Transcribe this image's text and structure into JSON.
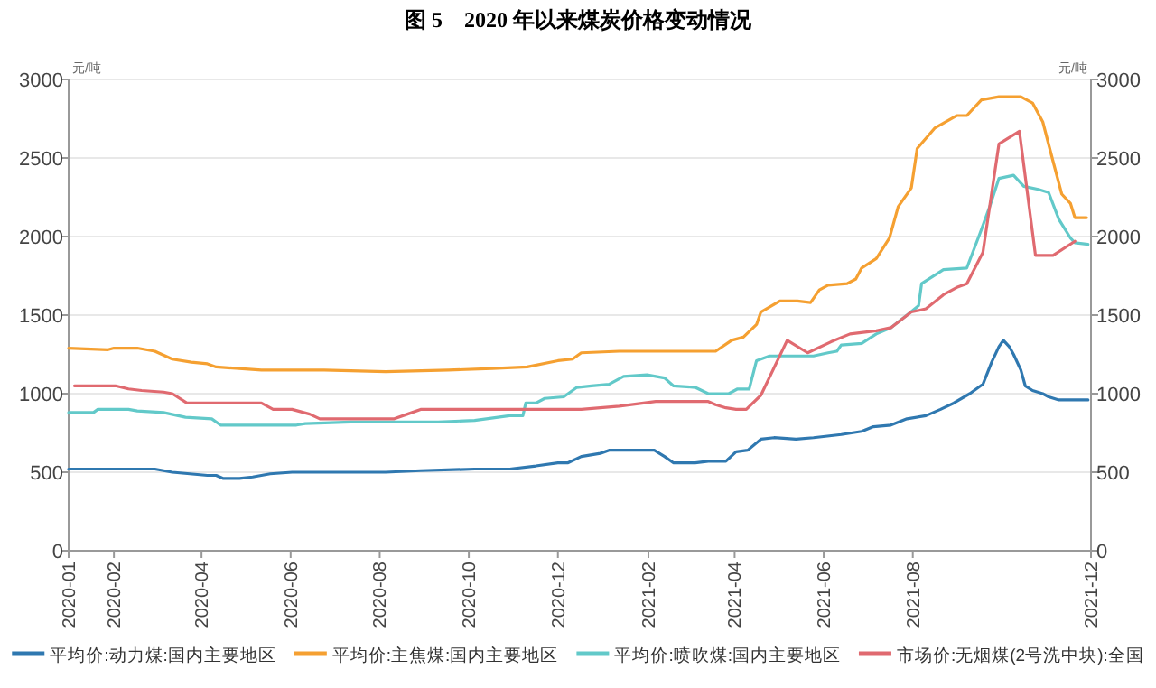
{
  "chart_data": {
    "type": "line",
    "title": "图 5　2020 年以来煤炭价格变动情况",
    "ylabel": "元/吨",
    "y2label": "元/吨",
    "xlim": [
      "2020-01-01",
      "2021-12-01"
    ],
    "ylim": [
      0,
      3000
    ],
    "y2lim": [
      0,
      3000
    ],
    "xticks": [
      {
        "value": "2020-01-01",
        "label": "2020-01"
      },
      {
        "value": "2020-02-01",
        "label": "2020-02"
      },
      {
        "value": "2020-04-01",
        "label": "2020-04"
      },
      {
        "value": "2020-06-01",
        "label": "2020-06"
      },
      {
        "value": "2020-08-01",
        "label": "2020-08"
      },
      {
        "value": "2020-10-01",
        "label": "2020-10"
      },
      {
        "value": "2020-12-01",
        "label": "2020-12"
      },
      {
        "value": "2021-02-01",
        "label": "2021-02"
      },
      {
        "value": "2021-04-01",
        "label": "2021-04"
      },
      {
        "value": "2021-06-01",
        "label": "2021-06"
      },
      {
        "value": "2021-08-01",
        "label": "2021-08"
      },
      {
        "value": "2021-12-01",
        "label": "2021-12"
      }
    ],
    "yticks": [
      0,
      500,
      1000,
      1500,
      2000,
      2500,
      3000
    ],
    "y2ticks": [
      0,
      500,
      1000,
      1500,
      2000,
      2500,
      3000
    ],
    "grid": "y",
    "legend": "bottom",
    "marker": "none",
    "line_style": "solid",
    "series": [
      {
        "name": "平均价:动力煤:国内主要地区",
        "color": "#2f78b0",
        "x": [
          "2020-01-01",
          "2020-01-18",
          "2020-02-05",
          "2020-02-29",
          "2020-03-12",
          "2020-04-05",
          "2020-04-11",
          "2020-04-16",
          "2020-04-27",
          "2020-05-06",
          "2020-05-18",
          "2020-06-02",
          "2020-07-06",
          "2020-08-05",
          "2020-08-29",
          "2020-10-05",
          "2020-10-29",
          "2020-11-16",
          "2020-12-01",
          "2020-12-08",
          "2020-12-17",
          "2020-12-30",
          "2021-01-05",
          "2021-02-05",
          "2021-02-12",
          "2021-02-18",
          "2021-03-05",
          "2021-03-14",
          "2021-03-26",
          "2021-04-02",
          "2021-04-10",
          "2021-04-19",
          "2021-04-28",
          "2021-05-13",
          "2021-05-25",
          "2021-06-13",
          "2021-06-27",
          "2021-07-05",
          "2021-07-17",
          "2021-07-28",
          "2021-08-10",
          "2021-08-20",
          "2021-08-29",
          "2021-09-09",
          "2021-09-18",
          "2021-09-24",
          "2021-09-29",
          "2021-10-02",
          "2021-10-06",
          "2021-10-09",
          "2021-10-14",
          "2021-10-17",
          "2021-10-22",
          "2021-10-29",
          "2021-11-02",
          "2021-11-09",
          "2021-11-29"
        ],
        "values": [
          520,
          520,
          520,
          520,
          500,
          480,
          480,
          460,
          460,
          470,
          490,
          500,
          500,
          500,
          510,
          520,
          520,
          540,
          560,
          560,
          600,
          620,
          640,
          640,
          600,
          560,
          560,
          570,
          570,
          630,
          640,
          710,
          720,
          710,
          720,
          740,
          760,
          790,
          800,
          840,
          860,
          900,
          940,
          1000,
          1060,
          1200,
          1300,
          1340,
          1300,
          1250,
          1150,
          1050,
          1020,
          1000,
          980,
          960,
          960
        ]
      },
      {
        "name": "平均价:主焦煤:国内主要地区",
        "color": "#f5a031",
        "x": [
          "2020-01-01",
          "2020-01-28",
          "2020-02-01",
          "2020-02-17",
          "2020-02-29",
          "2020-03-12",
          "2020-03-25",
          "2020-04-05",
          "2020-04-11",
          "2020-05-12",
          "2020-06-24",
          "2020-08-05",
          "2020-09-17",
          "2020-10-17",
          "2020-11-10",
          "2020-12-01",
          "2020-12-11",
          "2020-12-17",
          "2021-01-12",
          "2021-02-01",
          "2021-03-19",
          "2021-03-30",
          "2021-04-07",
          "2021-04-16",
          "2021-04-19",
          "2021-05-02",
          "2021-05-14",
          "2021-05-23",
          "2021-05-29",
          "2021-06-04",
          "2021-06-17",
          "2021-06-23",
          "2021-06-27",
          "2021-07-07",
          "2021-07-16",
          "2021-07-22",
          "2021-07-31",
          "2021-08-04",
          "2021-08-16",
          "2021-08-31",
          "2021-09-07",
          "2021-09-17",
          "2021-09-29",
          "2021-10-14",
          "2021-10-22",
          "2021-10-29",
          "2021-11-05",
          "2021-11-11",
          "2021-11-17",
          "2021-11-20",
          "2021-11-28"
        ],
        "values": [
          1290,
          1280,
          1290,
          1290,
          1270,
          1220,
          1200,
          1190,
          1170,
          1150,
          1150,
          1140,
          1150,
          1160,
          1170,
          1210,
          1220,
          1260,
          1270,
          1270,
          1270,
          1340,
          1360,
          1440,
          1520,
          1590,
          1590,
          1580,
          1660,
          1690,
          1700,
          1730,
          1800,
          1860,
          1990,
          2190,
          2310,
          2560,
          2690,
          2770,
          2770,
          2870,
          2890,
          2890,
          2850,
          2730,
          2480,
          2270,
          2210,
          2120,
          2120
        ]
      },
      {
        "name": "平均价:喷吹煤:国内主要地区",
        "color": "#62c9c9",
        "x": [
          "2020-01-01",
          "2020-01-18",
          "2020-01-21",
          "2020-02-11",
          "2020-02-17",
          "2020-03-06",
          "2020-03-21",
          "2020-04-08",
          "2020-04-14",
          "2020-04-30",
          "2020-06-05",
          "2020-06-11",
          "2020-07-12",
          "2020-09-10",
          "2020-10-05",
          "2020-10-29",
          "2020-11-07",
          "2020-11-09",
          "2020-11-16",
          "2020-11-22",
          "2020-12-05",
          "2020-12-14",
          "2020-12-24",
          "2021-01-05",
          "2021-01-15",
          "2021-01-31",
          "2021-02-12",
          "2021-02-18",
          "2021-03-05",
          "2021-03-14",
          "2021-03-28",
          "2021-04-03",
          "2021-04-11",
          "2021-04-16",
          "2021-04-25",
          "2021-05-13",
          "2021-05-25",
          "2021-06-04",
          "2021-06-10",
          "2021-06-13",
          "2021-06-27",
          "2021-07-07",
          "2021-07-17",
          "2021-07-28",
          "2021-08-05",
          "2021-08-07",
          "2021-08-22",
          "2021-09-07",
          "2021-09-16",
          "2021-09-23",
          "2021-09-29",
          "2021-10-09",
          "2021-10-16",
          "2021-10-26",
          "2021-11-02",
          "2021-11-09",
          "2021-11-17",
          "2021-11-20",
          "2021-11-29"
        ],
        "values": [
          880,
          880,
          900,
          900,
          890,
          880,
          850,
          840,
          800,
          800,
          800,
          810,
          820,
          820,
          830,
          860,
          860,
          940,
          940,
          970,
          980,
          1040,
          1050,
          1060,
          1110,
          1120,
          1100,
          1050,
          1040,
          1000,
          1000,
          1030,
          1030,
          1210,
          1240,
          1240,
          1240,
          1260,
          1270,
          1310,
          1320,
          1380,
          1420,
          1500,
          1560,
          1700,
          1790,
          1800,
          2020,
          2200,
          2370,
          2390,
          2320,
          2300,
          2280,
          2110,
          1990,
          1960,
          1950
        ]
      },
      {
        "name": "市场价:无烟煤(2号洗中块):全国",
        "color": "#e06a70",
        "x": [
          "2020-01-05",
          "2020-02-02",
          "2020-02-11",
          "2020-02-20",
          "2020-03-06",
          "2020-03-12",
          "2020-03-22",
          "2020-04-05",
          "2020-05-12",
          "2020-05-20",
          "2020-06-02",
          "2020-06-14",
          "2020-06-21",
          "2020-07-12",
          "2020-08-11",
          "2020-08-20",
          "2020-08-29",
          "2020-10-05",
          "2020-12-17",
          "2021-01-12",
          "2021-02-06",
          "2021-03-14",
          "2021-03-19",
          "2021-03-26",
          "2021-04-02",
          "2021-04-09",
          "2021-04-19",
          "2021-05-07",
          "2021-05-21",
          "2021-06-06",
          "2021-06-19",
          "2021-07-07",
          "2021-07-17",
          "2021-07-31",
          "2021-08-10",
          "2021-08-22",
          "2021-09-01",
          "2021-09-07",
          "2021-09-18",
          "2021-09-29",
          "2021-10-13",
          "2021-10-24",
          "2021-11-05",
          "2021-11-20"
        ],
        "values": [
          1050,
          1050,
          1030,
          1020,
          1010,
          1000,
          940,
          940,
          940,
          900,
          900,
          870,
          840,
          840,
          840,
          870,
          900,
          900,
          900,
          920,
          950,
          950,
          930,
          910,
          900,
          900,
          990,
          1340,
          1260,
          1330,
          1380,
          1400,
          1420,
          1520,
          1540,
          1630,
          1680,
          1700,
          1900,
          2590,
          2670,
          1880,
          1880,
          1970
        ]
      }
    ]
  }
}
